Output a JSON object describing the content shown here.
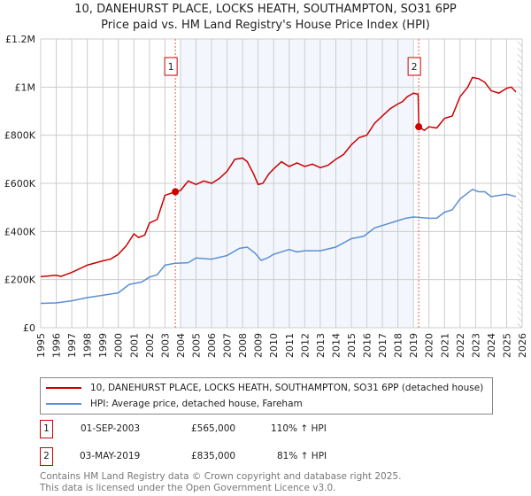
{
  "chart_data": {
    "type": "line",
    "title": "10, DANEHURST PLACE, LOCKS HEATH, SOUTHAMPTON, SO31 6PP",
    "subtitle": "Price paid vs. HM Land Registry's House Price Index (HPI)",
    "xlim": [
      1995,
      2026
    ],
    "ylim": [
      0,
      1200000
    ],
    "yticks": [
      {
        "v": 0,
        "label": "£0"
      },
      {
        "v": 200000,
        "label": "£200K"
      },
      {
        "v": 400000,
        "label": "£400K"
      },
      {
        "v": 600000,
        "label": "£600K"
      },
      {
        "v": 800000,
        "label": "£800K"
      },
      {
        "v": 1000000,
        "label": "£1M"
      },
      {
        "v": 1200000,
        "label": "£1.2M"
      }
    ],
    "xticks": [
      "1995",
      "1996",
      "1997",
      "1998",
      "1999",
      "2000",
      "2001",
      "2002",
      "2003",
      "2004",
      "2005",
      "2006",
      "2007",
      "2008",
      "2009",
      "2010",
      "2011",
      "2012",
      "2013",
      "2014",
      "2015",
      "2016",
      "2017",
      "2018",
      "2019",
      "2020",
      "2021",
      "2022",
      "2023",
      "2024",
      "2025",
      "2026"
    ],
    "grid": true,
    "shaded_range": [
      2004,
      2019
    ],
    "forecast_hatch_from": 2025.7,
    "series": [
      {
        "name": "10, DANEHURST PLACE, LOCKS HEATH, SOUTHAMPTON, SO31 6PP (detached house)",
        "color": "#cc0000",
        "x": [
          1995,
          1996,
          1996.3,
          1997,
          1998,
          1999,
          1999.5,
          2000,
          2000.5,
          2001,
          2001.3,
          2001.7,
          2002,
          2002.5,
          2003,
          2003.67,
          2004,
          2004.5,
          2005,
          2005.5,
          2006,
          2006.5,
          2007,
          2007.5,
          2008,
          2008.3,
          2008.7,
          2009,
          2009.3,
          2009.7,
          2010,
          2010.5,
          2011,
          2011.5,
          2012,
          2012.5,
          2013,
          2013.5,
          2014,
          2014.5,
          2015,
          2015.5,
          2016,
          2016.5,
          2017,
          2017.5,
          2018,
          2018.3,
          2018.6,
          2019,
          2019.3,
          2019.35,
          2019.7,
          2020,
          2020.5,
          2021,
          2021.5,
          2022,
          2022.5,
          2022.8,
          2023.2,
          2023.6,
          2024,
          2024.5,
          2025,
          2025.3,
          2025.6
        ],
        "y": [
          212000,
          218000,
          213000,
          230000,
          260000,
          278000,
          285000,
          305000,
          340000,
          390000,
          375000,
          385000,
          435000,
          450000,
          550000,
          565000,
          570000,
          610000,
          595000,
          610000,
          600000,
          620000,
          650000,
          700000,
          705000,
          690000,
          640000,
          595000,
          600000,
          640000,
          660000,
          690000,
          670000,
          685000,
          670000,
          680000,
          665000,
          675000,
          700000,
          720000,
          760000,
          790000,
          800000,
          850000,
          880000,
          910000,
          930000,
          940000,
          960000,
          975000,
          970000,
          835000,
          820000,
          835000,
          830000,
          870000,
          880000,
          960000,
          1000000,
          1040000,
          1035000,
          1020000,
          985000,
          975000,
          995000,
          1000000,
          980000
        ]
      },
      {
        "name": "HPI: Average price, detached house, Fareham",
        "color": "#5b8fd4",
        "x": [
          1995,
          1996,
          1997,
          1998,
          1999,
          2000,
          2000.7,
          2001.5,
          2002,
          2002.5,
          2003,
          2003.67,
          2004.5,
          2005,
          2006,
          2007,
          2007.8,
          2008.3,
          2008.8,
          2009.2,
          2009.6,
          2010,
          2011,
          2011.5,
          2012,
          2013,
          2014,
          2015,
          2015.8,
          2016.5,
          2017,
          2018,
          2018.5,
          2019,
          2020,
          2020.5,
          2021,
          2021.5,
          2022,
          2022.8,
          2023.2,
          2023.6,
          2024,
          2025,
          2025.6
        ],
        "y": [
          101000,
          103000,
          112000,
          125000,
          135000,
          145000,
          180000,
          190000,
          210000,
          220000,
          260000,
          268000,
          270000,
          290000,
          285000,
          300000,
          330000,
          335000,
          310000,
          280000,
          290000,
          305000,
          325000,
          315000,
          320000,
          320000,
          335000,
          370000,
          380000,
          415000,
          425000,
          445000,
          455000,
          460000,
          455000,
          455000,
          480000,
          490000,
          535000,
          575000,
          565000,
          565000,
          545000,
          555000,
          545000
        ]
      }
    ],
    "sales": [
      {
        "id": "1",
        "x": 2003.67,
        "y": 565000,
        "date": "01-SEP-2003",
        "price": "£565,000",
        "hpi": "110% ↑ HPI"
      },
      {
        "id": "2",
        "x": 2019.34,
        "y": 835000,
        "date": "03-MAY-2019",
        "price": "£835,000",
        "hpi": "81% ↑ HPI"
      }
    ]
  },
  "footer": {
    "line1": "Contains HM Land Registry data © Crown copyright and database right 2025.",
    "line2": "This data is licensed under the Open Government Licence v3.0."
  }
}
